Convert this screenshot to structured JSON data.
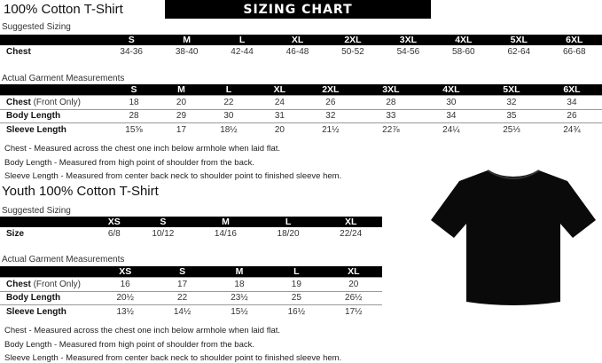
{
  "adult": {
    "title": "100% Cotton T-Shirt",
    "banner": "SIZING CHART",
    "suggested_label": "Suggested Sizing",
    "sizes": [
      "S",
      "M",
      "L",
      "XL",
      "2XL",
      "3XL",
      "4XL",
      "5XL",
      "6XL"
    ],
    "suggested_rows": [
      {
        "label": "Chest",
        "values": [
          "34-36",
          "38-40",
          "42-44",
          "46-48",
          "50-52",
          "54-56",
          "58-60",
          "62-64",
          "66-68"
        ]
      }
    ],
    "actual_label": "Actual Garment Measurements",
    "actual_rows": [
      {
        "label": "Chest",
        "sub": " (Front Only)",
        "values": [
          "18",
          "20",
          "22",
          "24",
          "26",
          "28",
          "30",
          "32",
          "34"
        ]
      },
      {
        "label": "Body Length",
        "sub": "",
        "values": [
          "28",
          "29",
          "30",
          "31",
          "32",
          "33",
          "34",
          "35",
          "26"
        ]
      },
      {
        "label": "Sleeve Length",
        "sub": "",
        "values": [
          "15⅝",
          "17",
          "18½",
          "20",
          "21½",
          "22⅞",
          "24¼",
          "25⅓",
          "24¾"
        ]
      }
    ],
    "notes": [
      "Chest - Measured across the chest one inch below armhole when laid flat.",
      "Body Length - Measured from high point of shoulder from the back.",
      "Sleeve Length - Measured from center back neck to shoulder point to finished sleeve hem."
    ]
  },
  "youth": {
    "title": "Youth 100% Cotton T-Shirt",
    "suggested_label": "Suggested Sizing",
    "sizes": [
      "XS",
      "S",
      "M",
      "L",
      "XL"
    ],
    "suggested_rows": [
      {
        "label": "Size",
        "values": [
          "6/8",
          "10/12",
          "14/16",
          "18/20",
          "22/24"
        ]
      }
    ],
    "actual_label": "Actual Garment Measurements",
    "actual_rows": [
      {
        "label": "Chest",
        "sub": " (Front Only)",
        "values": [
          "16",
          "17",
          "18",
          "19",
          "20"
        ]
      },
      {
        "label": "Body Length",
        "sub": "",
        "values": [
          "20½",
          "22",
          "23½",
          "25",
          "26½"
        ]
      },
      {
        "label": "Sleeve Length",
        "sub": "",
        "values": [
          "13½",
          "14½",
          "15½",
          "16½",
          "17½"
        ]
      }
    ],
    "notes": [
      "Chest - Measured across the chest one inch below armhole when laid flat.",
      "Body Length - Measured from high point of shoulder from the back.",
      "Sleeve Length - Measured from center back neck to shoulder point to finished sleeve hem."
    ]
  },
  "product_image": {
    "icon": "tshirt-icon",
    "color": "#0a0a0a"
  }
}
